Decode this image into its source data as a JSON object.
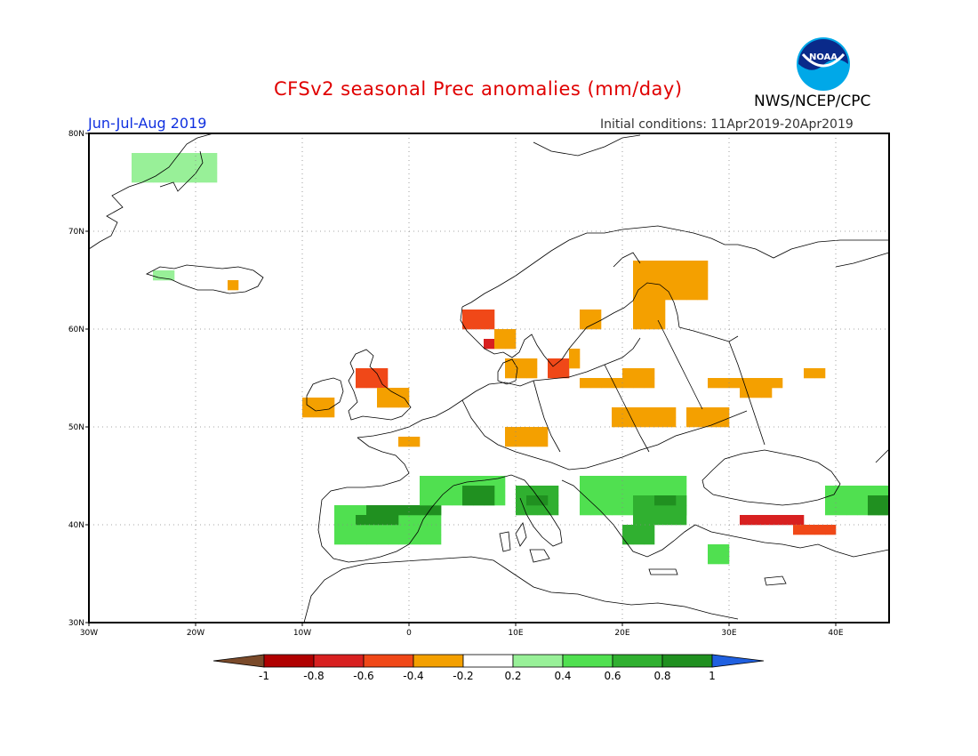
{
  "header": {
    "title": "CFSv2 seasonal Prec anomalies (mm/day)",
    "period": "Jun-Jul-Aug 2019",
    "initial_conditions": "Initial conditions: 11Apr2019-20Apr2019",
    "agency": "NWS/NCEP/CPC",
    "logo_text": "NOAA"
  },
  "map": {
    "lon_range": [
      -30,
      45
    ],
    "lat_range": [
      30,
      80
    ],
    "lon_ticks": [
      "30W",
      "20W",
      "10W",
      "0",
      "10E",
      "20E",
      "30E",
      "40E"
    ],
    "lat_ticks": [
      "80N",
      "70N",
      "60N",
      "50N",
      "40N",
      "30N"
    ],
    "gridlines": "dotted"
  },
  "colorbar": {
    "labels": [
      "-1",
      "-0.8",
      "-0.6",
      "-0.4",
      "-0.2",
      "0.2",
      "0.4",
      "0.6",
      "0.8",
      "1"
    ],
    "colors": [
      "#7a4a2a",
      "#b00000",
      "#d82020",
      "#f04818",
      "#f4a000",
      "#ffffff",
      "#98f098",
      "#50e050",
      "#30b030",
      "#209020",
      "#2060e0"
    ]
  },
  "chart_data": {
    "type": "heatmap",
    "title": "CFSv2 seasonal Prec anomalies (mm/day)",
    "subtitle": "Jun-Jul-Aug 2019",
    "units": "mm/day",
    "cell_size_deg": 1,
    "anomaly_regions": [
      {
        "lon": [
          -26,
          -18
        ],
        "lat": [
          75,
          78
        ],
        "value": 0.3
      },
      {
        "lon": [
          -24,
          -22
        ],
        "lat": [
          65,
          66
        ],
        "value": 0.3
      },
      {
        "lon": [
          -17,
          -16
        ],
        "lat": [
          64,
          65
        ],
        "value": -0.3
      },
      {
        "lon": [
          -10,
          -7
        ],
        "lat": [
          51,
          53
        ],
        "value": -0.3
      },
      {
        "lon": [
          -5,
          -2
        ],
        "lat": [
          54,
          56
        ],
        "value": -0.5
      },
      {
        "lon": [
          -3,
          0
        ],
        "lat": [
          52,
          54
        ],
        "value": -0.3
      },
      {
        "lon": [
          5,
          8
        ],
        "lat": [
          60,
          62
        ],
        "value": -0.5
      },
      {
        "lon": [
          7,
          8
        ],
        "lat": [
          58,
          59
        ],
        "value": -0.6
      },
      {
        "lon": [
          8,
          10
        ],
        "lat": [
          58,
          60
        ],
        "value": -0.3
      },
      {
        "lon": [
          9,
          12
        ],
        "lat": [
          55,
          57
        ],
        "value": -0.3
      },
      {
        "lon": [
          13,
          15
        ],
        "lat": [
          55,
          57
        ],
        "value": -0.5
      },
      {
        "lon": [
          15,
          16
        ],
        "lat": [
          56,
          58
        ],
        "value": -0.3
      },
      {
        "lon": [
          16,
          23
        ],
        "lat": [
          54,
          55
        ],
        "value": -0.3
      },
      {
        "lon": [
          20,
          23
        ],
        "lat": [
          55,
          56
        ],
        "value": -0.3
      },
      {
        "lon": [
          16,
          18
        ],
        "lat": [
          60,
          62
        ],
        "value": -0.3
      },
      {
        "lon": [
          21,
          28
        ],
        "lat": [
          63,
          67
        ],
        "value": -0.3
      },
      {
        "lon": [
          21,
          24
        ],
        "lat": [
          60,
          63
        ],
        "value": -0.3
      },
      {
        "lon": [
          19,
          25
        ],
        "lat": [
          50,
          52
        ],
        "value": -0.3
      },
      {
        "lon": [
          26,
          30
        ],
        "lat": [
          50,
          52
        ],
        "value": -0.3
      },
      {
        "lon": [
          28,
          35
        ],
        "lat": [
          54,
          55
        ],
        "value": -0.3
      },
      {
        "lon": [
          31,
          34
        ],
        "lat": [
          53,
          55
        ],
        "value": -0.3
      },
      {
        "lon": [
          37,
          39
        ],
        "lat": [
          55,
          56
        ],
        "value": -0.3
      },
      {
        "lon": [
          9,
          13
        ],
        "lat": [
          48,
          50
        ],
        "value": -0.3
      },
      {
        "lon": [
          -1,
          1
        ],
        "lat": [
          48,
          49
        ],
        "value": -0.3
      },
      {
        "lon": [
          31,
          37
        ],
        "lat": [
          40,
          41
        ],
        "value": -0.7
      },
      {
        "lon": [
          36,
          40
        ],
        "lat": [
          39,
          40
        ],
        "value": -0.5
      },
      {
        "lon": [
          -7,
          3
        ],
        "lat": [
          38,
          42
        ],
        "value": 0.5
      },
      {
        "lon": [
          -4,
          3
        ],
        "lat": [
          41,
          42
        ],
        "value": 0.9
      },
      {
        "lon": [
          -5,
          -1
        ],
        "lat": [
          40,
          41
        ],
        "value": 0.9
      },
      {
        "lon": [
          1,
          9
        ],
        "lat": [
          42,
          45
        ],
        "value": 0.4
      },
      {
        "lon": [
          5,
          8
        ],
        "lat": [
          42,
          44
        ],
        "value": 0.8
      },
      {
        "lon": [
          10,
          14
        ],
        "lat": [
          41,
          44
        ],
        "value": 0.6
      },
      {
        "lon": [
          11,
          13
        ],
        "lat": [
          42,
          43
        ],
        "value": 0.9
      },
      {
        "lon": [
          16,
          26
        ],
        "lat": [
          41,
          45
        ],
        "value": 0.4
      },
      {
        "lon": [
          21,
          26
        ],
        "lat": [
          40,
          43
        ],
        "value": 0.7
      },
      {
        "lon": [
          20,
          23
        ],
        "lat": [
          38,
          40
        ],
        "value": 0.6
      },
      {
        "lon": [
          23,
          25
        ],
        "lat": [
          42,
          43
        ],
        "value": 0.9
      },
      {
        "lon": [
          28,
          30
        ],
        "lat": [
          36,
          38
        ],
        "value": 0.5
      },
      {
        "lon": [
          39,
          45
        ],
        "lat": [
          41,
          44
        ],
        "value": 0.4
      },
      {
        "lon": [
          43,
          45
        ],
        "lat": [
          41,
          43
        ],
        "value": 0.9
      }
    ]
  }
}
